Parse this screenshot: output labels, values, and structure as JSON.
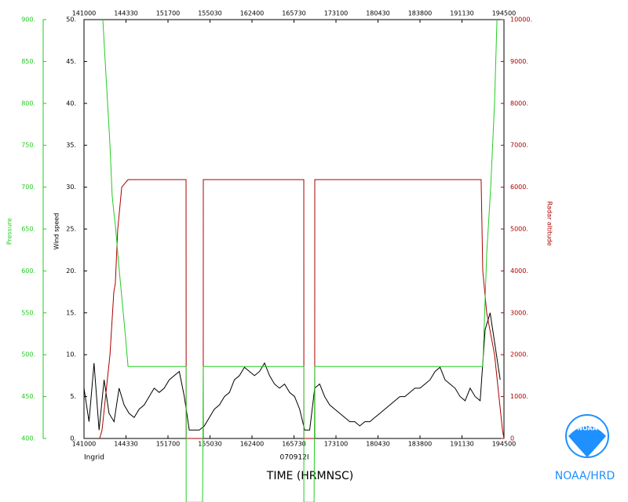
{
  "chart_data": {
    "type": "line",
    "xlabel": "TIME (HRMNSC)",
    "ylabel": "Wind speed",
    "y2label": "Radar altitude",
    "y3label": "Pressure",
    "storm": "Ingrid",
    "flight": "070912I",
    "credit": "NOAA/HRD",
    "logo_text": "NOAA",
    "xlim": [
      0,
      335
    ],
    "xticks": [
      {
        "value": 0,
        "label": "141000"
      },
      {
        "value": 33.5,
        "label": "144330"
      },
      {
        "value": 67,
        "label": "151700"
      },
      {
        "value": 100.5,
        "label": "155030"
      },
      {
        "value": 134,
        "label": "162400"
      },
      {
        "value": 167.5,
        "label": "165730"
      },
      {
        "value": 201,
        "label": "173100"
      },
      {
        "value": 234.5,
        "label": "180430"
      },
      {
        "value": 268,
        "label": "183800"
      },
      {
        "value": 301.5,
        "label": "191130"
      },
      {
        "value": 335,
        "label": "194500"
      }
    ],
    "ylim": [
      0,
      50
    ],
    "yticks": [
      {
        "value": 0,
        "label": "0."
      },
      {
        "value": 5,
        "label": "5."
      },
      {
        "value": 10,
        "label": "10."
      },
      {
        "value": 15,
        "label": "15."
      },
      {
        "value": 20,
        "label": "20."
      },
      {
        "value": 25,
        "label": "25."
      },
      {
        "value": 30,
        "label": "30."
      },
      {
        "value": 35,
        "label": "35."
      },
      {
        "value": 40,
        "label": "40."
      },
      {
        "value": 45,
        "label": "45."
      },
      {
        "value": 50,
        "label": "50."
      }
    ],
    "y2lim": [
      0,
      10000
    ],
    "y2ticks": [
      0,
      {
        "value": 1000,
        "label": "1000."
      },
      {
        "value": 2000,
        "label": "2000."
      },
      {
        "value": 3000,
        "label": "3000."
      },
      {
        "value": 4000,
        "label": "4000."
      },
      {
        "value": 5000,
        "label": "5000."
      },
      {
        "value": 6000,
        "label": "6000."
      },
      {
        "value": 7000,
        "label": "7000."
      },
      {
        "value": 8000,
        "label": "8000."
      },
      {
        "value": 9000,
        "label": "9000."
      },
      {
        "value": 10000,
        "label": "10000."
      }
    ],
    "y3lim": [
      400,
      900
    ],
    "y3ticks": [
      {
        "value": 400,
        "label": "400."
      },
      {
        "value": 450,
        "label": "450."
      },
      {
        "value": 500,
        "label": "500."
      },
      {
        "value": 550,
        "label": "550."
      },
      {
        "value": 600,
        "label": "600."
      },
      {
        "value": 650,
        "label": "650."
      },
      {
        "value": 700,
        "label": "700."
      },
      {
        "value": 750,
        "label": "750."
      },
      {
        "value": 800,
        "label": "800."
      },
      {
        "value": 850,
        "label": "850."
      },
      {
        "value": 900,
        "label": "900."
      }
    ],
    "y2color": "#aa0000",
    "y3color": "#22cc22",
    "series": [
      {
        "name": "Wind speed",
        "color": "#000000",
        "axis": "y",
        "x": [
          0,
          4,
          8,
          12,
          16,
          20,
          24,
          28,
          32,
          36,
          40,
          44,
          48,
          52,
          56,
          60,
          64,
          68,
          72,
          76,
          80,
          84,
          88,
          92,
          96,
          100,
          104,
          108,
          112,
          116,
          120,
          124,
          128,
          132,
          136,
          140,
          144,
          148,
          152,
          156,
          160,
          164,
          168,
          172,
          176,
          180,
          184,
          188,
          192,
          196,
          200,
          204,
          208,
          212,
          216,
          220,
          224,
          228,
          232,
          236,
          240,
          244,
          248,
          252,
          256,
          260,
          264,
          268,
          272,
          276,
          280,
          284,
          288,
          292,
          296,
          300,
          304,
          308,
          312,
          316,
          320,
          324,
          328,
          332
        ],
        "values": [
          6,
          2,
          9,
          1,
          7,
          3,
          2,
          6,
          4,
          3,
          2.5,
          3.5,
          4,
          5,
          6,
          5.5,
          6,
          7,
          7.5,
          8,
          5,
          1,
          1,
          1,
          1.5,
          2.5,
          3.5,
          4,
          5,
          5.5,
          7,
          7.5,
          8.5,
          8,
          7.5,
          8,
          9,
          7.5,
          6.5,
          6,
          6.5,
          5.5,
          5,
          3.5,
          1,
          1,
          6,
          6.5,
          5,
          4,
          3.5,
          3,
          2.5,
          2,
          2,
          1.5,
          2,
          2,
          2.5,
          3,
          3.5,
          4,
          4.5,
          5,
          5,
          5.5,
          6,
          6,
          6.5,
          7,
          8,
          8.5,
          7,
          6.5,
          6,
          5,
          4.5,
          6,
          5,
          4.5,
          13,
          15,
          11,
          7
        ]
      },
      {
        "name": "Radar altitude",
        "color": "#aa0000",
        "axis": "y2",
        "x": [
          12.5,
          14.4,
          20.7,
          23.8,
          25.0,
          26.9,
          30.1,
          35.1,
          81.4,
          81.5,
          95.1,
          95.2,
          175.3,
          175.4,
          184.0,
          184.1,
          316.8,
          318.1,
          321.2,
          327.5,
          333.8,
          335
        ],
        "values": [
          0,
          200,
          2000,
          3500,
          3700,
          5000,
          6000,
          6180,
          6180,
          0,
          0,
          6180,
          6180,
          0,
          0,
          6180,
          6180,
          4000,
          3000,
          2000,
          200,
          0
        ]
      },
      {
        "name": "Pressure",
        "color": "#22cc22",
        "axis": "y3",
        "x": [
          15.0,
          20.7,
          22.5,
          23.8,
          25.0,
          28.2,
          33.2,
          35.1,
          81.4,
          81.5,
          94.6,
          95.2,
          175.3,
          175.4,
          183.5,
          184.1,
          318.1,
          321.2,
          324.4,
          327.5,
          329.4
        ],
        "values": [
          900,
          750,
          690,
          670,
          655,
          600,
          520,
          486,
          486,
          324,
          324,
          486,
          486,
          324,
          324,
          486,
          486,
          620,
          700,
          800,
          900
        ]
      }
    ]
  }
}
